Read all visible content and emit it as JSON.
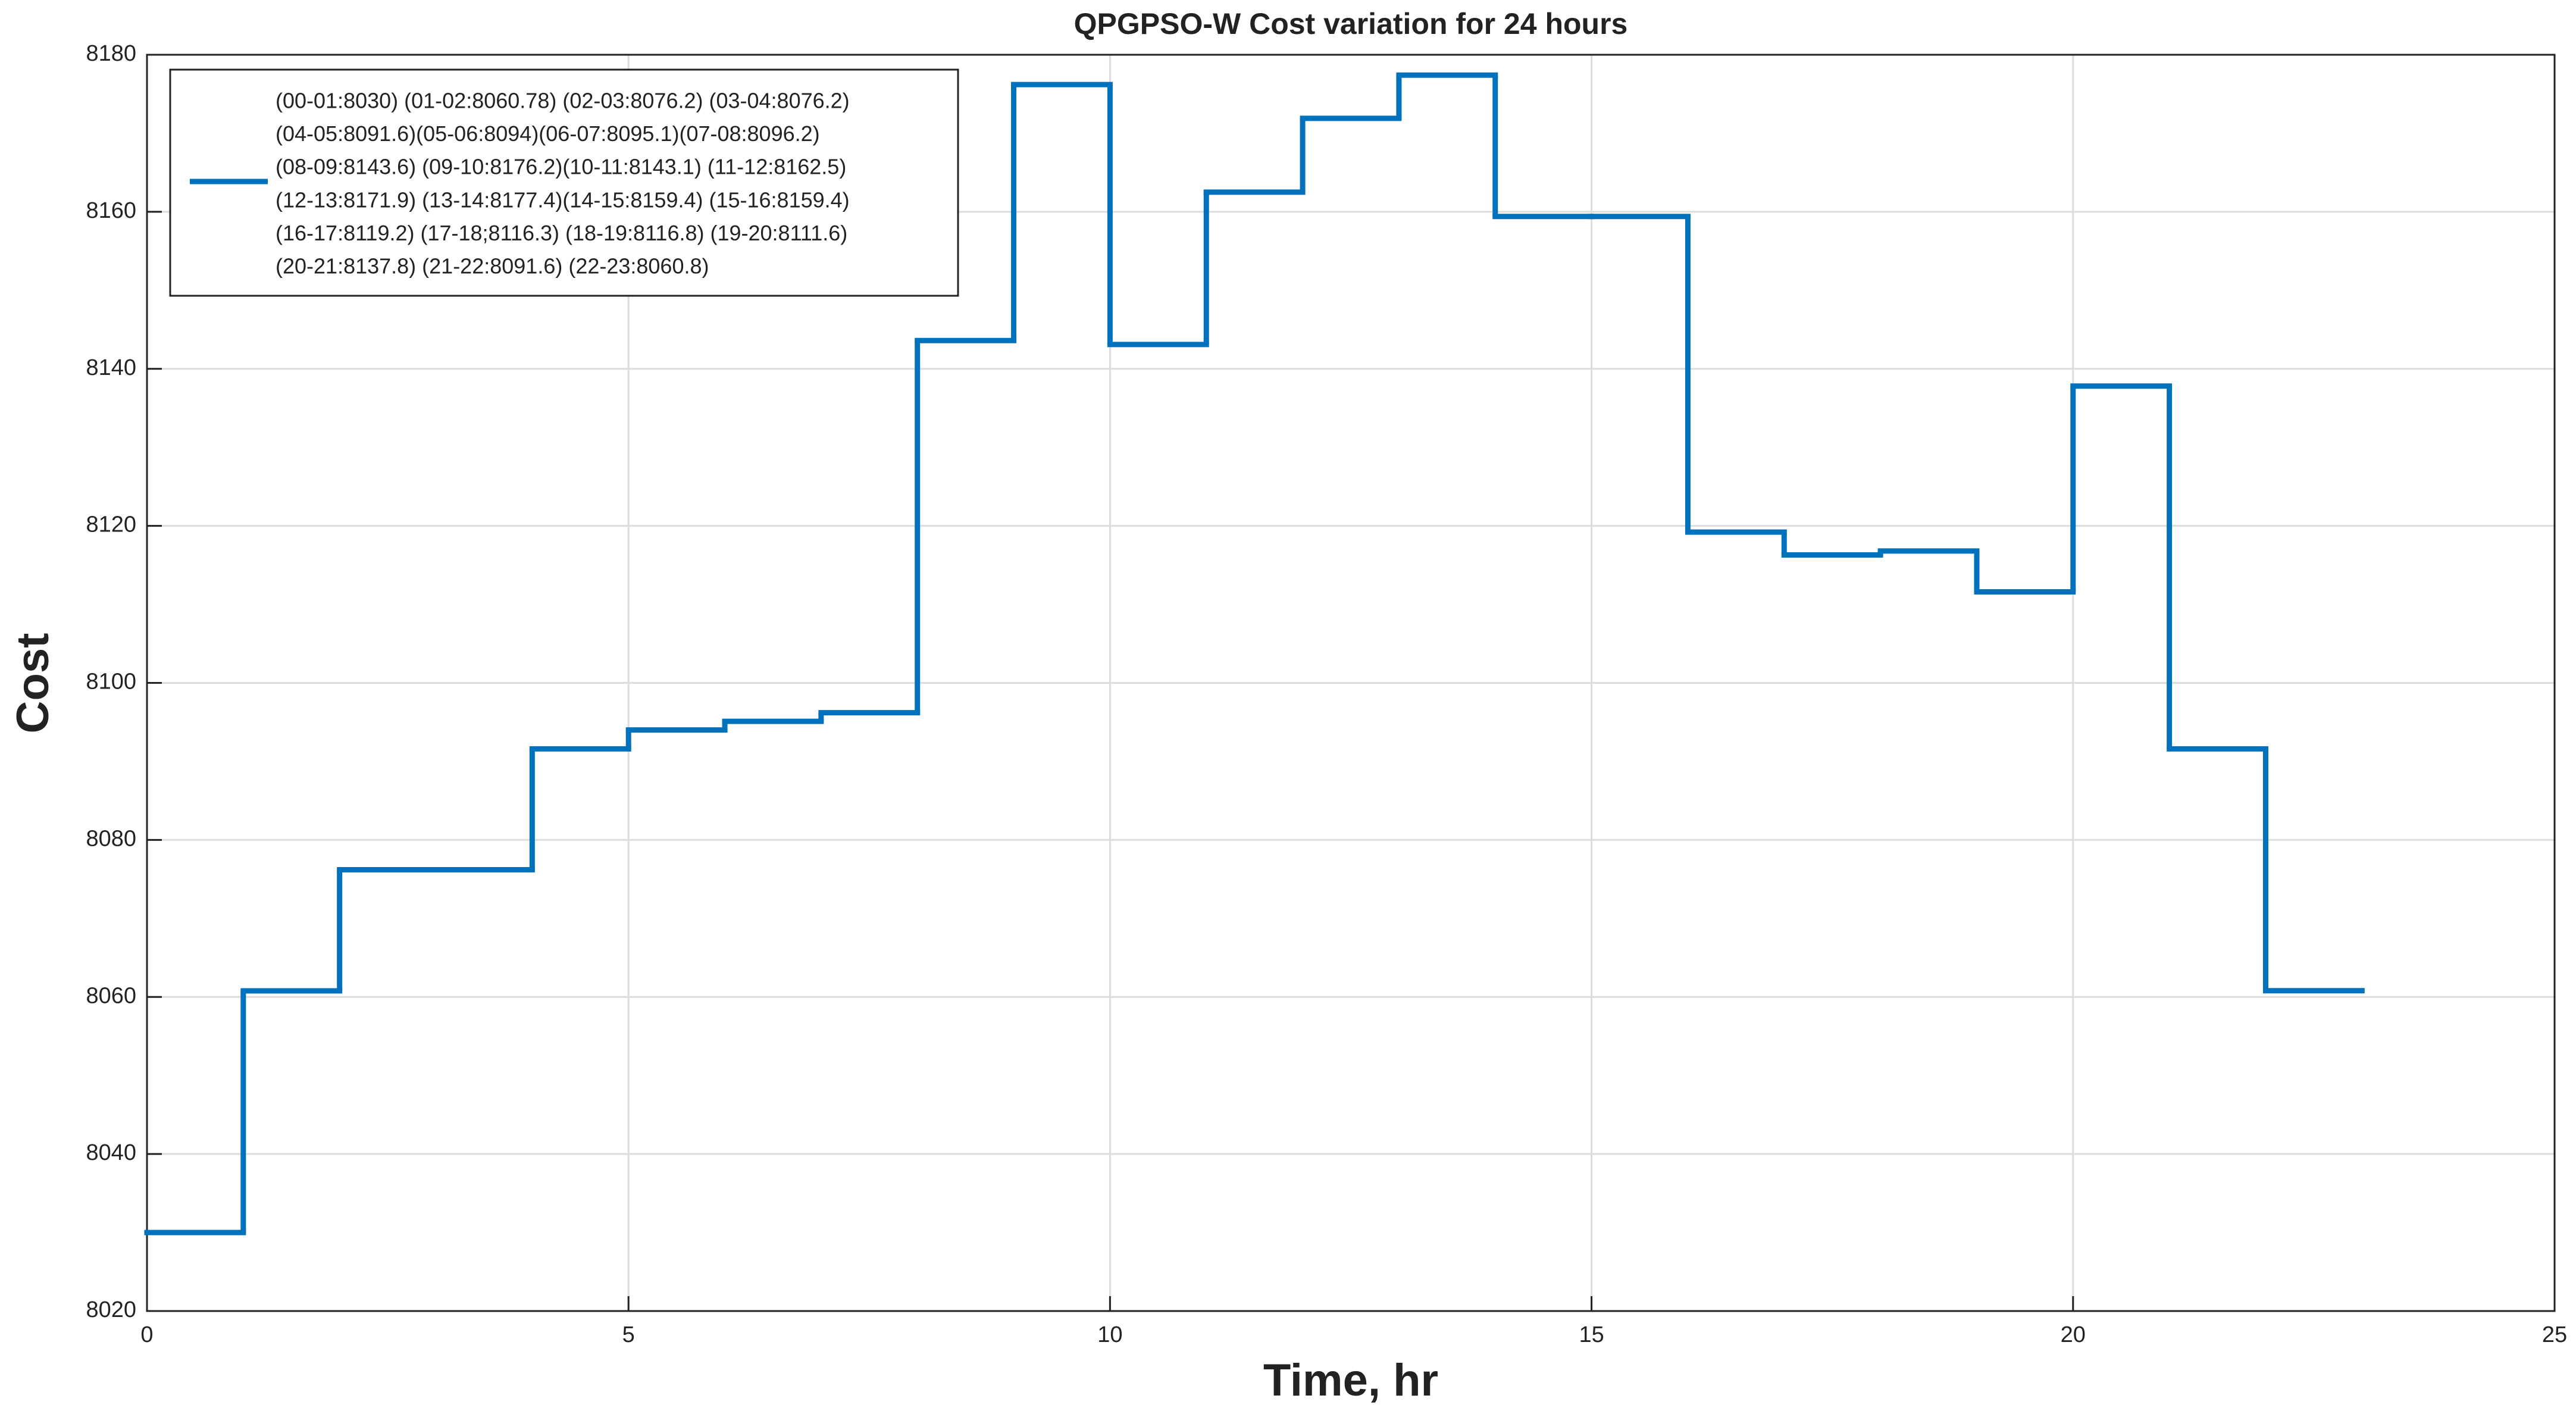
{
  "chart_data": {
    "type": "stairs",
    "title": "QPGPSO-W Cost variation for 24 hours",
    "x_label": "Time, hr",
    "y_label": "Cost",
    "x": [
      0,
      1,
      2,
      3,
      4,
      5,
      6,
      7,
      8,
      9,
      10,
      11,
      12,
      13,
      14,
      15,
      16,
      17,
      18,
      19,
      20,
      21,
      22
    ],
    "series": [
      {
        "name": [
          "(00-01:8030) (01-02:8060.78) (02-03:8076.2) (03-04:8076.2)",
          "(04-05:8091.6)(05-06:8094)(06-07:8095.1)(07-08:8096.2)",
          "(08-09:8143.6) (09-10:8176.2)(10-11:8143.1) (11-12:8162.5)",
          "(12-13:8171.9) (13-14:8177.4)(14-15:8159.4) (15-16:8159.4)",
          "(16-17:8119.2) (17-18;8116.3) (18-19:8116.8) (19-20:8111.6)",
          "(20-21:8137.8) (21-22:8091.6) (22-23:8060.8)"
        ],
        "color": "#0072bd",
        "values": [
          8030,
          8060.78,
          8076.2,
          8076.2,
          8091.6,
          8094,
          8095.1,
          8096.2,
          8143.6,
          8176.2,
          8143.1,
          8162.5,
          8171.9,
          8177.4,
          8159.4,
          8159.4,
          8119.2,
          8116.3,
          8116.8,
          8111.6,
          8137.8,
          8091.6,
          8060.8
        ]
      }
    ],
    "xlim": [
      0,
      25
    ],
    "xticks": [
      0,
      5,
      10,
      15,
      20,
      25
    ],
    "ylim": [
      8020,
      8180
    ],
    "yticks": [
      8020,
      8040,
      8060,
      8080,
      8100,
      8120,
      8140,
      8160,
      8180
    ],
    "grid": true,
    "legend_position": "upper left"
  }
}
